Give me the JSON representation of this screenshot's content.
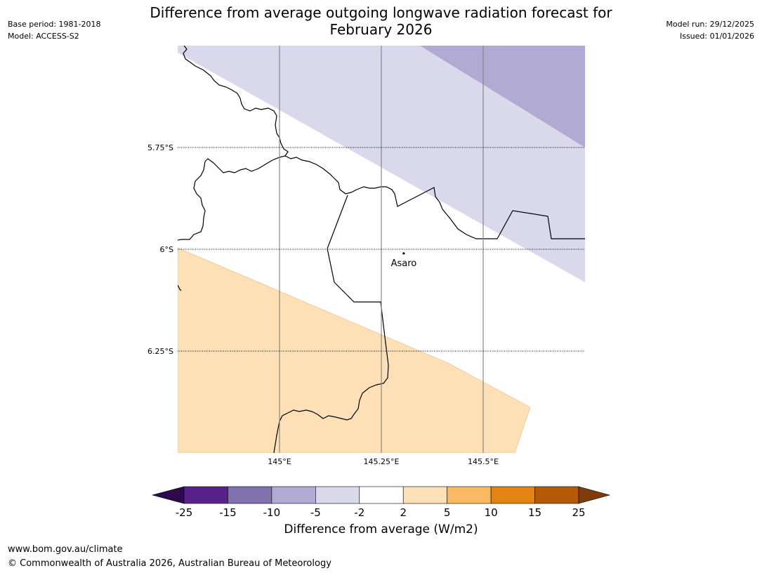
{
  "header": {
    "title_line1": "Difference from average outgoing longwave radiation forecast for",
    "title_line2": "February 2026",
    "base_period": "Base period: 1981-2018",
    "model": "Model: ACCESS-S2",
    "model_run": "Model run: 29/12/2025",
    "issued": "Issued: 01/01/2026"
  },
  "map": {
    "lat_labels": [
      "5.75°S",
      "6°S",
      "6.25°S"
    ],
    "lon_labels": [
      "145°E",
      "145.25°E",
      "145.5°E"
    ],
    "place": {
      "name": "Asaro",
      "lat": -6.01,
      "lon": 145.305
    },
    "extent": {
      "lon_min": 144.75,
      "lon_max": 145.75,
      "lat_min": -6.5,
      "lat_max": -5.5
    }
  },
  "colorbar": {
    "ticks": [
      "-25",
      "-15",
      "-10",
      "-5",
      "-2",
      "2",
      "5",
      "10",
      "15",
      "25"
    ],
    "colors": [
      "#2d0a4e",
      "#58228a",
      "#8171ae",
      "#b1aad3",
      "#d9d9eb",
      "#ffffff",
      "#fde0b6",
      "#fbb862",
      "#e28413",
      "#b35908",
      "#7f3b08"
    ],
    "title": "Difference from average (W/m2)"
  },
  "footer": {
    "url": "www.bom.gov.au/climate",
    "copyright": "© Commonwealth of Australia 2026, Australian Bureau of Meteorology"
  }
}
